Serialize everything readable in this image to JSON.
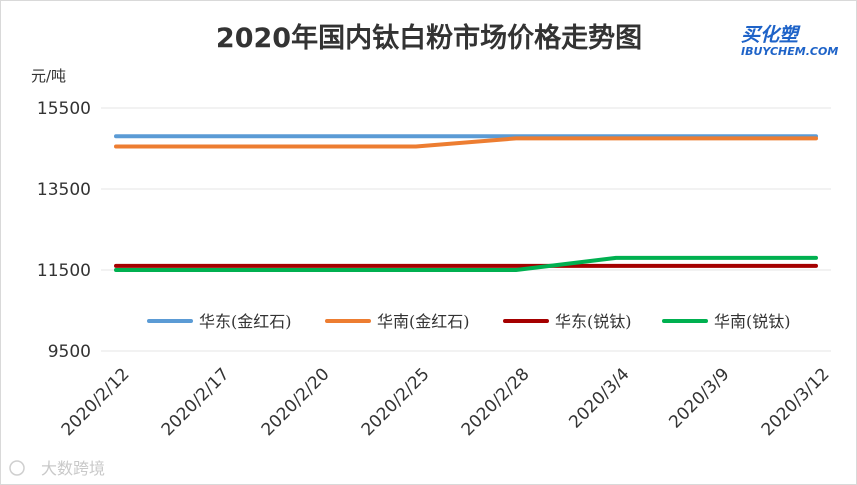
{
  "chart_data": {
    "type": "line",
    "title": "2020年国内钛白粉市场价格走势图",
    "ylabel": "元/吨",
    "xlabel": "",
    "ylim": [
      9500,
      15500
    ],
    "yticks": [
      9500,
      11500,
      13500,
      15500
    ],
    "x": [
      "2020/2/12",
      "2020/2/17",
      "2020/2/20",
      "2020/2/25",
      "2020/2/28",
      "2020/3/4",
      "2020/3/9",
      "2020/3/12"
    ],
    "grid": "horizontal",
    "legend_position": "inside-bottom",
    "series": [
      {
        "name": "华东(金红石)",
        "color": "#5b9bd5",
        "values": [
          14800,
          14800,
          14800,
          14800,
          14800,
          14800,
          14800,
          14800
        ]
      },
      {
        "name": "华南(金红石)",
        "color": "#ed7d31",
        "values": [
          14550,
          14550,
          14550,
          14550,
          14750,
          14750,
          14750,
          14750
        ]
      },
      {
        "name": "华东(锐钛)",
        "color": "#a50000",
        "values": [
          11600,
          11600,
          11600,
          11600,
          11600,
          11600,
          11600,
          11600
        ]
      },
      {
        "name": "华南(锐钛)",
        "color": "#00b050",
        "values": [
          11500,
          11500,
          11500,
          11500,
          11500,
          11800,
          11800,
          11800
        ]
      }
    ]
  },
  "logo": {
    "main": "买化塑",
    "sub": "IBUYCHEM.COM"
  },
  "watermark": {
    "text": "大数跨境"
  }
}
